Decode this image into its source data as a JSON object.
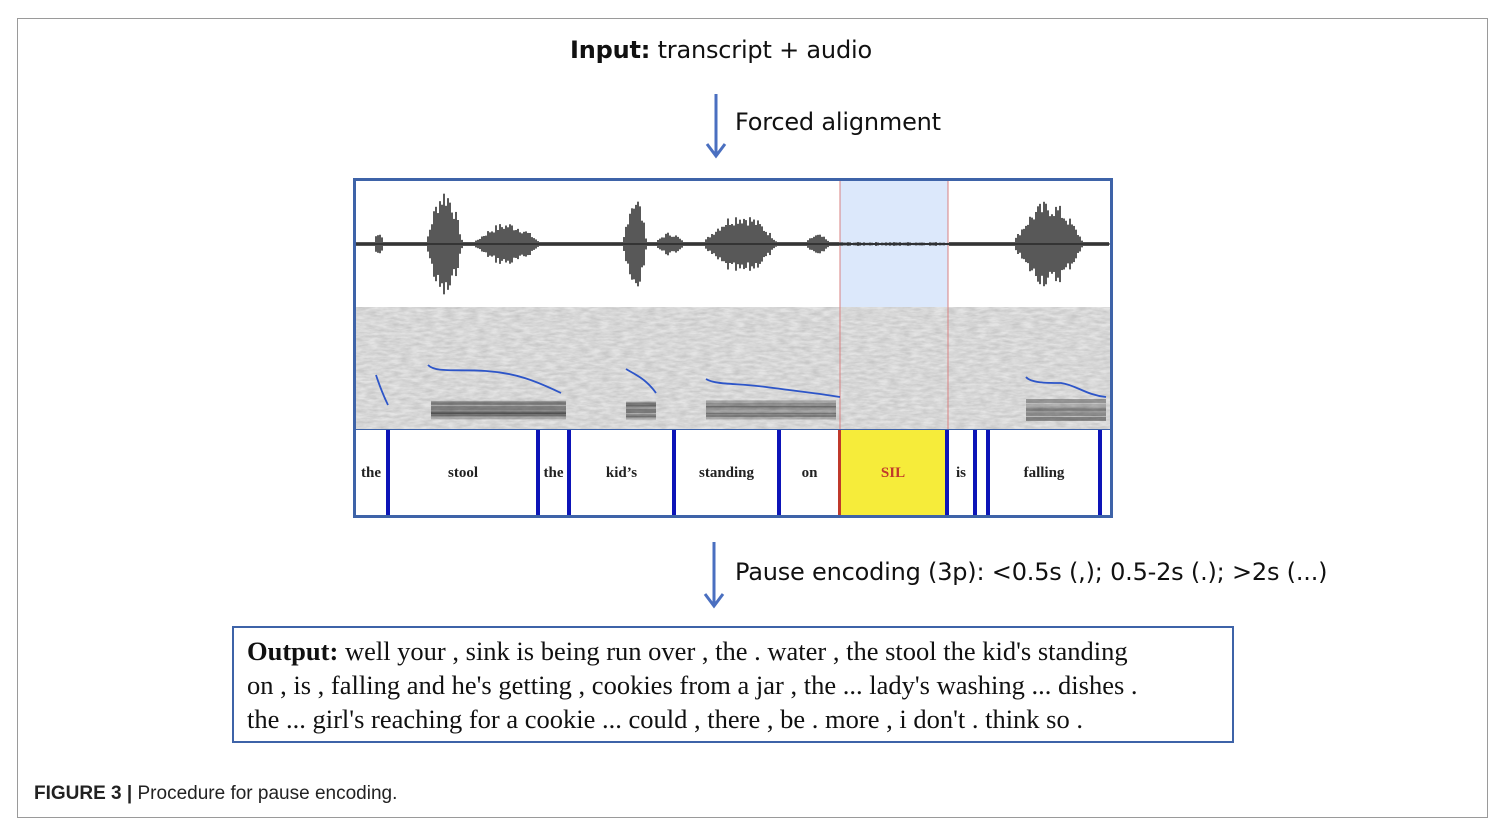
{
  "input": {
    "label": "Input:",
    "text": " transcript + audio"
  },
  "step1": {
    "label": "Forced alignment"
  },
  "step2": {
    "label": "Pause encoding (3p): <0.5s (,); 0.5-2s (.); >2s (...)"
  },
  "alignment": {
    "words": [
      "the",
      "stool",
      "the",
      "kid’s",
      "standing",
      "on",
      "SIL",
      "is",
      "falling"
    ],
    "colors": {
      "sil_fill": "#f6ec3a",
      "sil_text": "#c0392b",
      "silence_region": "#dce8fb",
      "boundary": "#0d14b8",
      "pitch": "#2d55c8"
    }
  },
  "output": {
    "label": "Output:",
    "line1": " well your , sink is being run over , the . water , the stool the kid's standing",
    "line2": "on , is , falling and he's getting , cookies from a jar , the ... lady's washing ... dishes .",
    "line3": "the ... girl's reaching for a cookie ... could , there , be . more , i don't . think so ."
  },
  "caption": {
    "label": "FIGURE 3 |",
    "text": " Procedure for pause encoding."
  }
}
